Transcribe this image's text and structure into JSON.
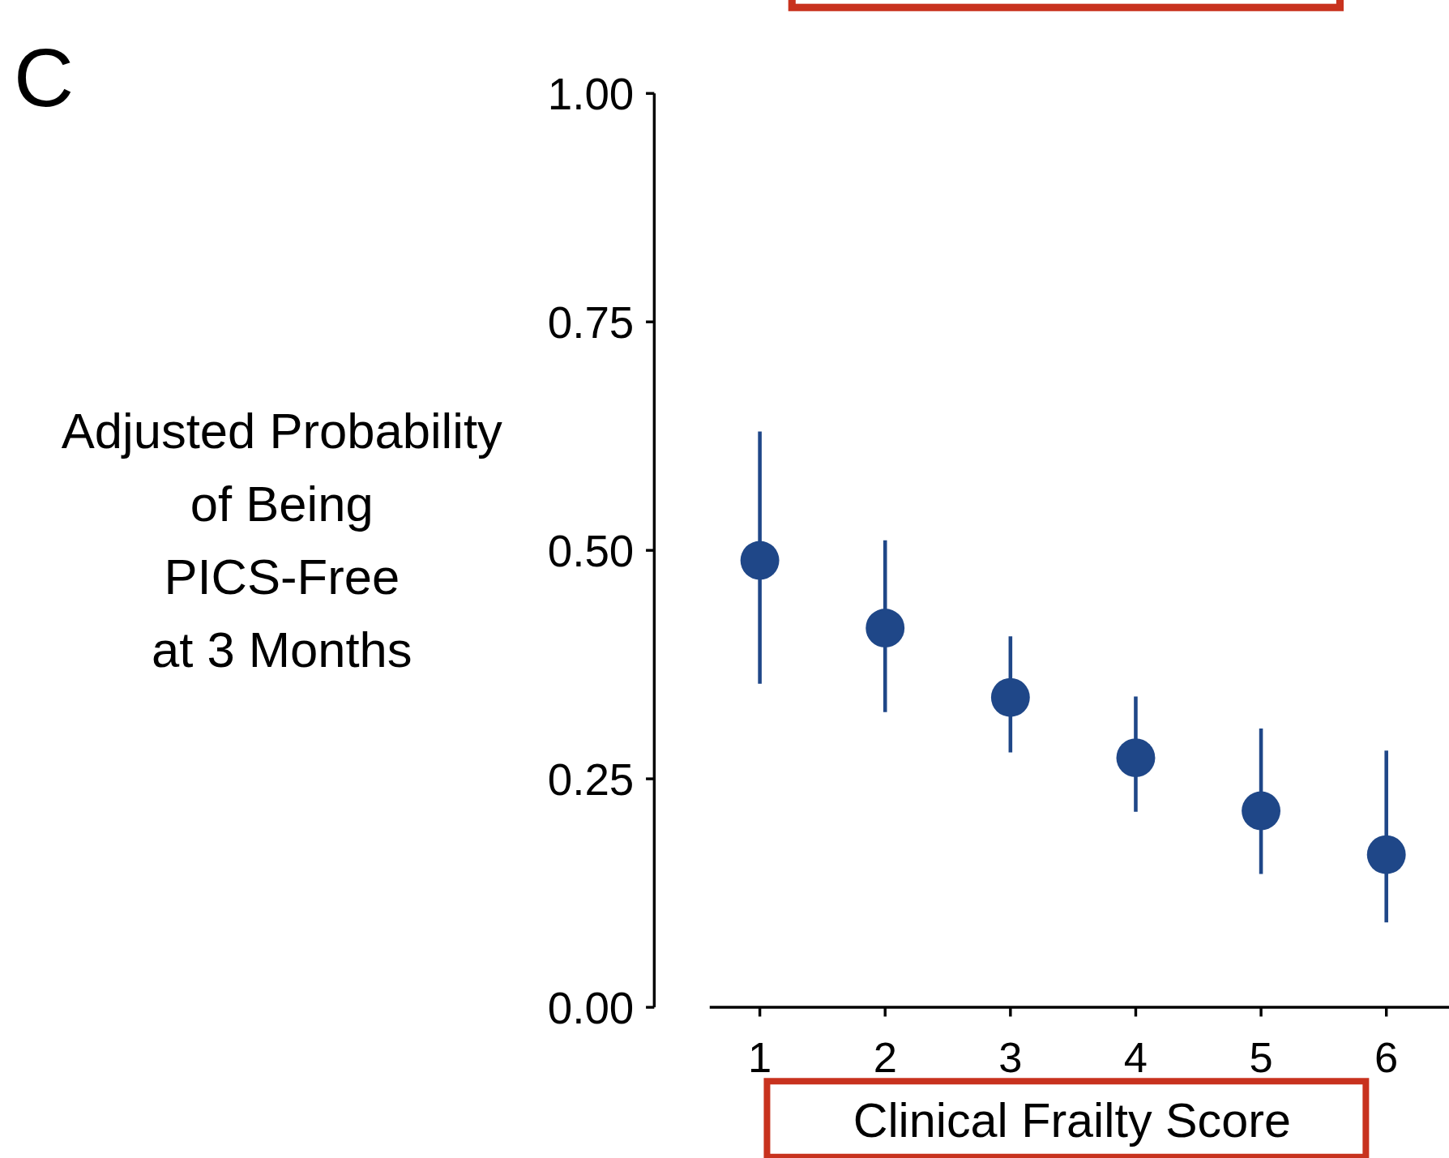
{
  "chart_data": {
    "type": "scatter",
    "xlabel": "Clinical Frailty Score",
    "ylabel": "Adjusted Probability\nof Being\nPICS-Free\nat 3 Months",
    "annotations": [
      "C"
    ],
    "x": [
      1,
      2,
      3,
      4,
      5,
      6
    ],
    "values": [
      0.489,
      0.415,
      0.339,
      0.273,
      0.215,
      0.167
    ],
    "errors": [
      [
        0.354,
        0.63
      ],
      [
        0.323,
        0.511
      ],
      [
        0.279,
        0.406
      ],
      [
        0.214,
        0.34
      ],
      [
        0.146,
        0.305
      ],
      [
        0.093,
        0.281
      ]
    ],
    "color": "#1f4788",
    "marker": "circle",
    "grid": false,
    "xlim": [
      0.6,
      6.5
    ],
    "xticks": [
      1,
      2,
      3,
      4,
      5,
      6
    ],
    "ylim": [
      0,
      1
    ],
    "yticks": [
      {
        "value": 0,
        "label": "0.00"
      },
      {
        "value": 0.25,
        "label": "0.25"
      },
      {
        "value": 0.5,
        "label": "0.50"
      },
      {
        "value": 0.75,
        "label": "0.75"
      },
      {
        "value": 1,
        "label": "1.00"
      }
    ]
  }
}
